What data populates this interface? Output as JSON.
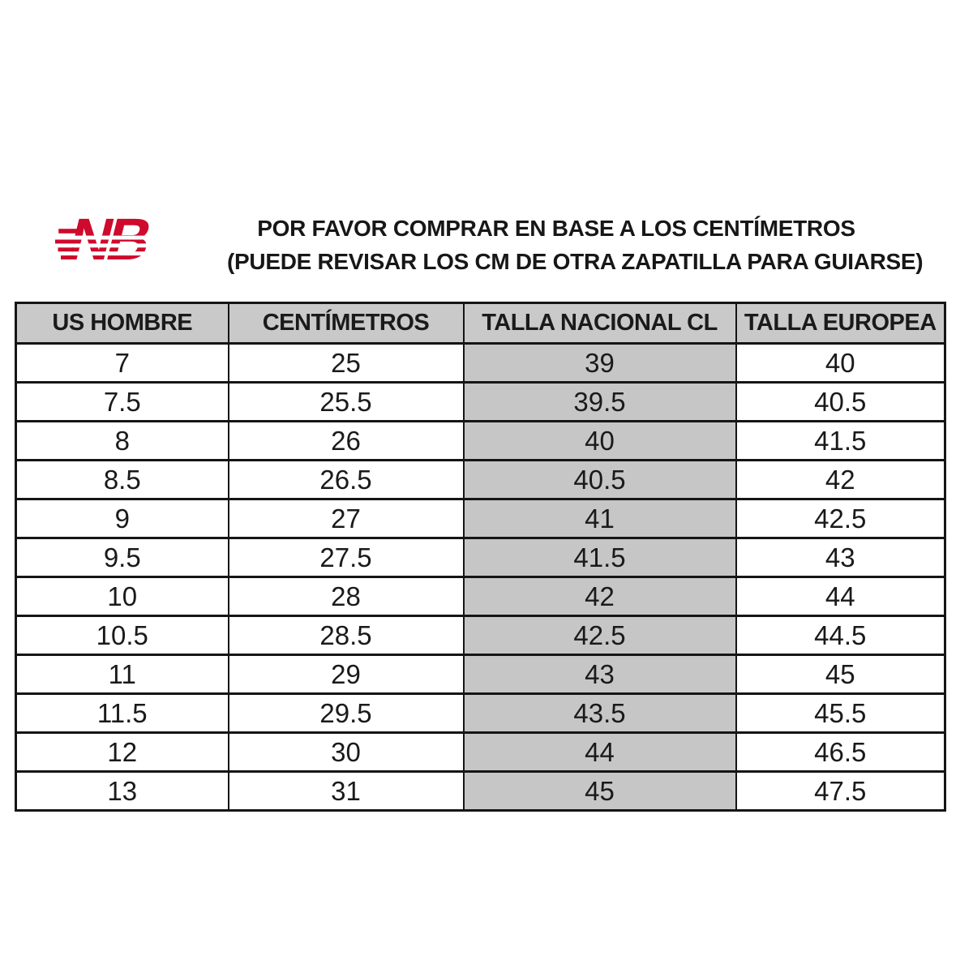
{
  "brand": {
    "name": "New Balance",
    "logo_color": "#cf0a2c"
  },
  "header": {
    "line1": "POR FAVOR COMPRAR EN BASE A LOS CENTÍMETROS",
    "line2": "(PUEDE REVISAR LOS CM DE OTRA ZAPATILLA PARA GUIARSE)"
  },
  "table": {
    "columns": [
      "US HOMBRE",
      "CENTÍMETROS",
      "TALLA NACIONAL CL",
      "TALLA EUROPEA"
    ],
    "highlight_column_index": 2,
    "colors": {
      "header_bg": "#c9c9c9",
      "highlight_bg": "#c6c6c6",
      "border": "#151515",
      "text": "#1a1a1a"
    },
    "rows": [
      [
        "7",
        "25",
        "39",
        "40"
      ],
      [
        "7.5",
        "25.5",
        "39.5",
        "40.5"
      ],
      [
        "8",
        "26",
        "40",
        "41.5"
      ],
      [
        "8.5",
        "26.5",
        "40.5",
        "42"
      ],
      [
        "9",
        "27",
        "41",
        "42.5"
      ],
      [
        "9.5",
        "27.5",
        "41.5",
        "43"
      ],
      [
        "10",
        "28",
        "42",
        "44"
      ],
      [
        "10.5",
        "28.5",
        "42.5",
        "44.5"
      ],
      [
        "11",
        "29",
        "43",
        "45"
      ],
      [
        "11.5",
        "29.5",
        "43.5",
        "45.5"
      ],
      [
        "12",
        "30",
        "44",
        "46.5"
      ],
      [
        "13",
        "31",
        "45",
        "47.5"
      ]
    ]
  }
}
